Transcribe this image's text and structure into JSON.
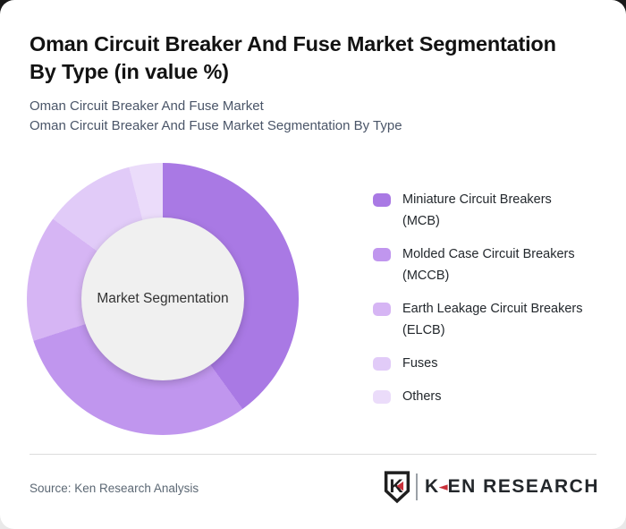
{
  "header": {
    "title_line1": "Oman Circuit Breaker And Fuse Market Segmentation",
    "title_line2": "By Type (in value %)",
    "subtitle_line1": "Oman Circuit Breaker And Fuse Market",
    "subtitle_line2": "Oman Circuit Breaker And Fuse Market Segmentation By Type"
  },
  "chart_data": {
    "type": "pie",
    "variant": "donut",
    "title": "Oman Circuit Breaker And Fuse Market Segmentation By Type (in value %)",
    "center_label": "Market Segmentation",
    "categories": [
      "Miniature Circuit Breakers (MCB)",
      "Molded Case Circuit Breakers (MCCB)",
      "Earth Leakage Circuit Breakers (ELCB)",
      "Fuses",
      "Others"
    ],
    "values": [
      40,
      30,
      15,
      11,
      4
    ],
    "unit": "%",
    "colors": [
      "#a979e4",
      "#c096ee",
      "#d6b5f4",
      "#e1cbf8",
      "#ebdcfa"
    ],
    "start_angle_deg": 0,
    "direction": "clockwise",
    "legend_position": "right",
    "inner_circle_color": "#f0f0f0"
  },
  "legend": {
    "items": [
      {
        "label": "Miniature Circuit Breakers",
        "abbr": "(MCB)",
        "color": "#a979e4"
      },
      {
        "label": "Molded Case Circuit Breakers",
        "abbr": "(MCCB)",
        "color": "#c096ee"
      },
      {
        "label": "Earth Leakage Circuit Breakers",
        "abbr": "(ELCB)",
        "color": "#d6b5f4"
      },
      {
        "label": "Fuses",
        "abbr": "",
        "color": "#e1cbf8"
      },
      {
        "label": "Others",
        "abbr": "",
        "color": "#ebdcfa"
      }
    ]
  },
  "footer": {
    "source": "Source: Ken Research Analysis",
    "logo": {
      "k": "K",
      "arrow_glyph": "◄",
      "rest": "EN RESEARCH"
    }
  },
  "theme": {
    "card_bg": "#ffffff",
    "outer_top_bg": "#191919",
    "outer_bottom_bg": "#e9e9e9",
    "title_color": "#121212",
    "subtitle_color": "#4a5568",
    "source_color": "#5c6874",
    "divider_color": "#dcdcdc",
    "logo_red": "#c9303a"
  }
}
